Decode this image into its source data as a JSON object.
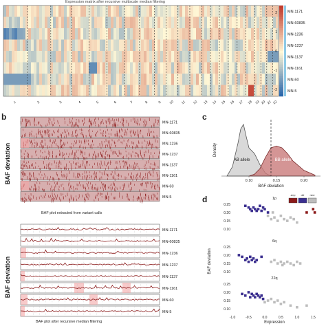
{
  "panels": {
    "a": {
      "title": "Expression matrix after recursive multiscale median filtering",
      "samples": [
        "MN-1171",
        "MN-60835",
        "MN-1236",
        "MN-1237",
        "MN-1137",
        "MN-1161",
        "MN-60",
        "MN-5"
      ],
      "chromosomes": [
        "1",
        "2",
        "3",
        "4",
        "5",
        "6",
        "7",
        "8",
        "9",
        "10",
        "11",
        "12",
        "13",
        "14",
        "15",
        "16",
        "17",
        "18",
        "19",
        "20",
        "21",
        "22"
      ],
      "colorbar_ticks": [
        "2",
        "1",
        "0",
        "-1",
        "-2"
      ],
      "colors": {
        "low": "#1f5fa8",
        "mid": "#fff7d6",
        "high": "#c0392b"
      }
    },
    "b": {
      "label": "b",
      "ylabel": "BAF deviation",
      "samples": [
        "MN-1171",
        "MN-60835",
        "MN-1236",
        "MN-1237",
        "MN-1137",
        "MN-1161",
        "MN-60",
        "MN-5"
      ],
      "top_caption": "BAF plot extracted from variant calls",
      "bottom_caption": "BAF plot after recursive median filtering",
      "color": "#8b1a1a"
    },
    "c": {
      "label": "c",
      "ylabel": "Density",
      "xlabel": "BAF deviation",
      "xticks": [
        "0.10",
        "0.15",
        "0.20"
      ],
      "ab_label": "AB allele",
      "bb_label": "BB allele"
    },
    "d": {
      "label": "d",
      "ylabel": "BAF deviation",
      "xlabel": "Expression",
      "xticks": [
        "-1.0",
        "-0.5",
        "0.0",
        "0.5",
        "1.0",
        "1.5"
      ],
      "yticks": [
        "0.25",
        "0.20",
        "0.15",
        "0.10"
      ],
      "facets": [
        "1p",
        "6q",
        "22q"
      ],
      "legend": [
        "amp",
        "del",
        "neut"
      ],
      "legend_colors": [
        "#8b1a1a",
        "#3b2f8f",
        "#bdbdbd"
      ]
    }
  },
  "chart_data": [
    {
      "type": "heatmap",
      "title": "Expression matrix after recursive multiscale median filtering",
      "rows": [
        "MN-1171",
        "MN-60835",
        "MN-1236",
        "MN-1237",
        "MN-1137",
        "MN-1161",
        "MN-60",
        "MN-5"
      ],
      "columns": [
        "1",
        "2",
        "3",
        "4",
        "5",
        "6",
        "7",
        "8",
        "9",
        "10",
        "11",
        "12",
        "13",
        "14",
        "15",
        "16",
        "17",
        "18",
        "19",
        "20",
        "21",
        "22"
      ],
      "scale": [
        -2,
        2
      ]
    },
    {
      "type": "area",
      "xlabel": "BAF deviation",
      "ylabel": "Density",
      "xlim": [
        0.05,
        0.23
      ],
      "series": [
        {
          "name": "AB allele",
          "x": [
            0.06,
            0.07,
            0.08,
            0.085,
            0.09,
            0.095,
            0.1,
            0.11,
            0.12,
            0.13,
            0.14
          ],
          "values": [
            0.0,
            1.0,
            3.5,
            5.0,
            5.5,
            4.2,
            3.0,
            2.4,
            1.2,
            0.3,
            0.0
          ]
        },
        {
          "name": "BB allele",
          "x": [
            0.1,
            0.11,
            0.12,
            0.13,
            0.14,
            0.15,
            0.16,
            0.17,
            0.18,
            0.2,
            0.22
          ],
          "values": [
            0.0,
            0.2,
            0.8,
            2.0,
            3.0,
            3.2,
            3.0,
            2.4,
            1.6,
            0.6,
            0.1
          ]
        }
      ],
      "vline": 0.14
    },
    {
      "type": "scatter",
      "xlabel": "Expression",
      "ylabel": "BAF deviation",
      "xlim": [
        -1.0,
        1.6
      ],
      "ylim": [
        0.08,
        0.27
      ],
      "facets": [
        {
          "name": "1p",
          "points": [
            {
              "x": -0.6,
              "y": 0.24,
              "c": "del"
            },
            {
              "x": -0.5,
              "y": 0.23,
              "c": "del"
            },
            {
              "x": -0.45,
              "y": 0.22,
              "c": "del"
            },
            {
              "x": -0.4,
              "y": 0.21,
              "c": "del"
            },
            {
              "x": -0.35,
              "y": 0.23,
              "c": "del"
            },
            {
              "x": -0.3,
              "y": 0.22,
              "c": "del"
            },
            {
              "x": -0.25,
              "y": 0.21,
              "c": "del"
            },
            {
              "x": -0.2,
              "y": 0.22,
              "c": "del"
            },
            {
              "x": -0.15,
              "y": 0.24,
              "c": "del"
            },
            {
              "x": -0.1,
              "y": 0.21,
              "c": "del"
            },
            {
              "x": -0.05,
              "y": 0.23,
              "c": "del"
            },
            {
              "x": 0.0,
              "y": 0.22,
              "c": "del"
            },
            {
              "x": 0.1,
              "y": 0.2,
              "c": "del"
            },
            {
              "x": 0.1,
              "y": 0.18,
              "c": "neut"
            },
            {
              "x": 0.2,
              "y": 0.16,
              "c": "neut"
            },
            {
              "x": 0.3,
              "y": 0.17,
              "c": "neut"
            },
            {
              "x": 0.4,
              "y": 0.15,
              "c": "neut"
            },
            {
              "x": 0.5,
              "y": 0.18,
              "c": "neut"
            },
            {
              "x": 0.6,
              "y": 0.16,
              "c": "neut"
            },
            {
              "x": 0.7,
              "y": 0.15,
              "c": "neut"
            },
            {
              "x": 0.8,
              "y": 0.17,
              "c": "neut"
            },
            {
              "x": 0.9,
              "y": 0.16,
              "c": "neut"
            },
            {
              "x": 1.0,
              "y": 0.14,
              "c": "neut"
            },
            {
              "x": 0.25,
              "y": 0.2,
              "c": "neut"
            },
            {
              "x": 1.3,
              "y": 0.2,
              "c": "amp"
            },
            {
              "x": 1.5,
              "y": 0.22,
              "c": "amp"
            },
            {
              "x": 1.55,
              "y": 0.2,
              "c": "amp"
            }
          ]
        },
        {
          "name": "6q",
          "points": [
            {
              "x": -0.8,
              "y": 0.2,
              "c": "del"
            },
            {
              "x": -0.7,
              "y": 0.19,
              "c": "del"
            },
            {
              "x": -0.6,
              "y": 0.17,
              "c": "del"
            },
            {
              "x": -0.55,
              "y": 0.18,
              "c": "del"
            },
            {
              "x": -0.5,
              "y": 0.16,
              "c": "del"
            },
            {
              "x": -0.45,
              "y": 0.19,
              "c": "del"
            },
            {
              "x": -0.4,
              "y": 0.17,
              "c": "del"
            },
            {
              "x": -0.35,
              "y": 0.18,
              "c": "del"
            },
            {
              "x": -0.3,
              "y": 0.16,
              "c": "del"
            },
            {
              "x": -0.25,
              "y": 0.17,
              "c": "del"
            },
            {
              "x": -0.1,
              "y": 0.19,
              "c": "del"
            },
            {
              "x": 0.2,
              "y": 0.16,
              "c": "neut"
            },
            {
              "x": 0.3,
              "y": 0.17,
              "c": "neut"
            },
            {
              "x": 0.4,
              "y": 0.15,
              "c": "neut"
            },
            {
              "x": 0.5,
              "y": 0.16,
              "c": "neut"
            },
            {
              "x": 0.55,
              "y": 0.14,
              "c": "neut"
            },
            {
              "x": 0.6,
              "y": 0.15,
              "c": "neut"
            },
            {
              "x": 0.7,
              "y": 0.16,
              "c": "neut"
            },
            {
              "x": 0.8,
              "y": 0.15,
              "c": "neut"
            },
            {
              "x": 0.9,
              "y": 0.14,
              "c": "neut"
            },
            {
              "x": 1.0,
              "y": 0.16,
              "c": "neut"
            },
            {
              "x": 1.1,
              "y": 0.15,
              "c": "neut"
            }
          ]
        },
        {
          "name": "22q",
          "points": [
            {
              "x": -0.7,
              "y": 0.19,
              "c": "del"
            },
            {
              "x": -0.6,
              "y": 0.18,
              "c": "del"
            },
            {
              "x": -0.5,
              "y": 0.2,
              "c": "del"
            },
            {
              "x": -0.45,
              "y": 0.17,
              "c": "del"
            },
            {
              "x": -0.4,
              "y": 0.19,
              "c": "del"
            },
            {
              "x": -0.35,
              "y": 0.18,
              "c": "del"
            },
            {
              "x": -0.3,
              "y": 0.17,
              "c": "del"
            },
            {
              "x": -0.25,
              "y": 0.19,
              "c": "del"
            },
            {
              "x": -0.2,
              "y": 0.18,
              "c": "del"
            },
            {
              "x": -0.15,
              "y": 0.17,
              "c": "del"
            },
            {
              "x": -0.1,
              "y": 0.18,
              "c": "del"
            },
            {
              "x": -0.05,
              "y": 0.16,
              "c": "del"
            },
            {
              "x": 0.0,
              "y": 0.14,
              "c": "neut"
            },
            {
              "x": 0.1,
              "y": 0.15,
              "c": "neut"
            },
            {
              "x": 0.2,
              "y": 0.16,
              "c": "neut"
            },
            {
              "x": 0.3,
              "y": 0.14,
              "c": "neut"
            },
            {
              "x": 0.4,
              "y": 0.15,
              "c": "neut"
            },
            {
              "x": 0.5,
              "y": 0.13,
              "c": "neut"
            },
            {
              "x": 0.6,
              "y": 0.14,
              "c": "neut"
            },
            {
              "x": 0.8,
              "y": 0.12,
              "c": "neut"
            },
            {
              "x": 1.0,
              "y": 0.11,
              "c": "neut"
            },
            {
              "x": 1.3,
              "y": 0.12,
              "c": "neut"
            }
          ]
        }
      ]
    }
  ]
}
